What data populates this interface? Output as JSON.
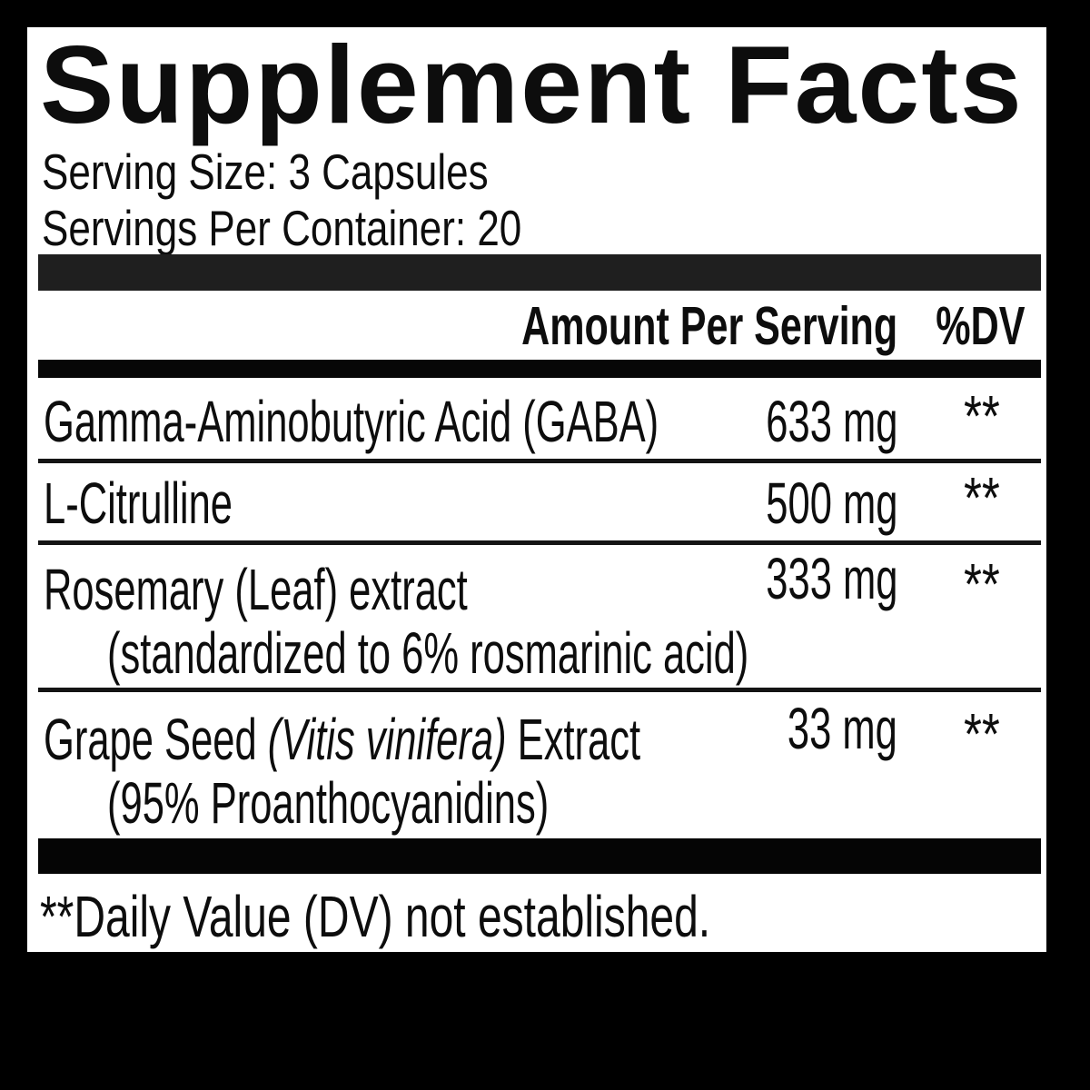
{
  "title": "Supplement Facts",
  "serving": {
    "size": "Serving Size: 3 Capsules",
    "per_container": "Servings Per Container: 20"
  },
  "columns": {
    "amount": "Amount Per Serving",
    "dv": "%DV"
  },
  "rows": [
    {
      "name": "Gamma-Aminobutyric Acid (GABA)",
      "amount": "633 mg",
      "dv": "**"
    },
    {
      "name": "L-Citrulline",
      "amount": "500 mg",
      "dv": "**"
    },
    {
      "name": "Rosemary (Leaf) extract",
      "sub": "(standardized to 6% rosmarinic acid)",
      "amount": "333 mg",
      "dv": "**"
    },
    {
      "name_prefix": "Grape Seed ",
      "name_italic": "(Vitis vinifera)",
      "name_suffix": " Extract",
      "sub": "(95% Proanthocyanidins)",
      "amount": "33 mg",
      "dv": "**"
    }
  ],
  "footnote": "**Daily Value (DV) not established.",
  "colors": {
    "page_bg": "#000000",
    "panel_bg": "#ffffff",
    "text": "#0d0d0d",
    "bar_dark": "#1f1f1f",
    "bar_black": "#050505",
    "rule": "#070707",
    "divider": "#141414"
  }
}
